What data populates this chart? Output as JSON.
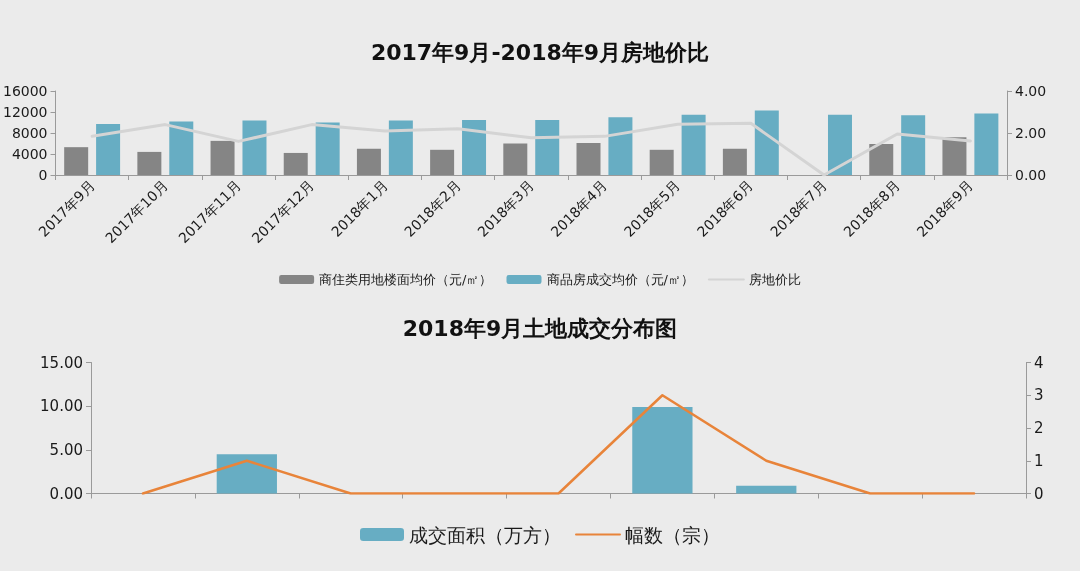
{
  "chart_data": [
    {
      "type": "bar",
      "title": "2017年9月-2018年9月房地价比",
      "categories": [
        "2017年9月",
        "2017年10月",
        "2017年11月",
        "2017年12月",
        "2018年1月",
        "2018年2月",
        "2018年3月",
        "2018年4月",
        "2018年5月",
        "2018年6月",
        "2018年7月",
        "2018年8月",
        "2018年9月"
      ],
      "series": [
        {
          "name": "商住类用地楼面均价（元/㎡）",
          "color": "#858585",
          "values": [
            5300,
            4400,
            6500,
            4200,
            5000,
            4800,
            6000,
            6100,
            4800,
            5000,
            null,
            5900,
            7200
          ]
        },
        {
          "name": "商品房成交均价（元/㎡）",
          "color": "#67adc3",
          "values": [
            9700,
            10200,
            10400,
            10000,
            10400,
            10500,
            10500,
            11000,
            11500,
            12300,
            11500,
            11400,
            11700
          ]
        },
        {
          "name": "房地价比",
          "type": "line",
          "axis": "y2",
          "color": "#d4d4d4",
          "values": [
            1.85,
            2.4,
            1.6,
            2.4,
            2.1,
            2.2,
            1.77,
            1.84,
            2.42,
            2.46,
            0,
            1.95,
            1.62
          ]
        }
      ],
      "ylim": [
        0,
        16000
      ],
      "yticks": [
        0,
        4000,
        8000,
        12000,
        16000
      ],
      "y2lim": [
        0,
        4
      ],
      "y2ticks": [
        {
          "value": 0,
          "label": "0.00"
        },
        {
          "value": 2,
          "label": "2.00"
        },
        {
          "value": 4,
          "label": "4.00"
        }
      ],
      "legend": "bottom",
      "marker": "none"
    },
    {
      "type": "bar",
      "title": "2018年9月土地成交分布图",
      "categories": [
        null,
        null,
        null,
        null,
        null,
        null,
        null,
        null,
        null
      ],
      "series": [
        {
          "name": "成交面积（万方）",
          "color": "#67adc3",
          "values": [
            0,
            4.5,
            0,
            0,
            0,
            9.9,
            0.9,
            0,
            0
          ]
        },
        {
          "name": "幅数（宗）",
          "type": "line",
          "axis": "y2",
          "color": "#e8843a",
          "values": [
            0,
            1,
            0,
            0,
            0,
            3,
            1,
            0,
            0
          ]
        }
      ],
      "ylim": [
        0,
        15
      ],
      "yticks": [
        {
          "value": 0,
          "label": "0.00"
        },
        {
          "value": 5,
          "label": "5.00"
        },
        {
          "value": 10,
          "label": "10.00"
        },
        {
          "value": 15,
          "label": "15.00"
        }
      ],
      "y2lim": [
        0,
        4
      ],
      "y2ticks": [
        0,
        1,
        2,
        3,
        4
      ],
      "legend": "bottom",
      "marker": "none"
    }
  ]
}
